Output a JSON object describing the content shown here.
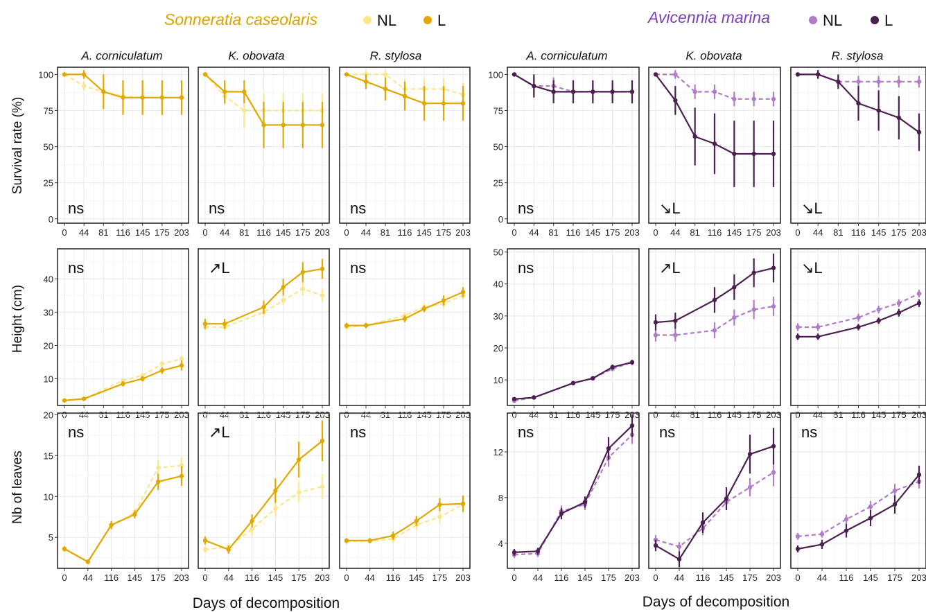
{
  "legends": [
    {
      "title": "Sonneratia caseolaris",
      "title_color": "#D9A300",
      "items": [
        {
          "label": "NL",
          "color": "#FDE58E"
        },
        {
          "label": "L",
          "color": "#E0A800"
        }
      ]
    },
    {
      "title": "Avicennia marina",
      "title_color": "#7B3FBF",
      "items": [
        {
          "label": "NL",
          "color": "#B07CC6"
        },
        {
          "label": "L",
          "color": "#4B1F4F"
        }
      ]
    }
  ],
  "x_axis_label": "Days of decomposition",
  "y_axis_labels": [
    "Survival rate (%)",
    "Height (cm)",
    "Nb of leaves"
  ],
  "species": [
    "A. corniculatum",
    "K. obovata",
    "R. stylosa"
  ],
  "chart_data": [
    {
      "type": "line",
      "group": "Sonneratia caseolaris",
      "row": "Survival rate (%)",
      "x_ticks": [
        "0",
        "44",
        "81",
        "116",
        "145",
        "175",
        "203"
      ],
      "y_ticks": [
        "0",
        "25",
        "50",
        "75",
        "100"
      ],
      "ylim": [
        -3,
        105
      ],
      "panels": [
        {
          "species": "A. corniculatum",
          "annotation": "ns",
          "series": [
            {
              "name": "NL",
              "values": [
                100,
                92,
                88,
                85,
                84,
                84,
                84
              ],
              "err": [
                0,
                3,
                5,
                6,
                6,
                6,
                6
              ]
            },
            {
              "name": "L",
              "values": [
                100,
                100,
                88,
                84,
                84,
                84,
                84
              ],
              "err": [
                0,
                3,
                12,
                12,
                12,
                12,
                12
              ]
            }
          ]
        },
        {
          "species": "K. obovata",
          "annotation": "ns",
          "series": [
            {
              "name": "NL",
              "values": [
                100,
                85,
                75,
                75,
                75,
                75,
                75
              ],
              "err": [
                0,
                6,
                12,
                12,
                12,
                12,
                12
              ]
            },
            {
              "name": "L",
              "values": [
                100,
                88,
                88,
                65,
                65,
                65,
                65
              ],
              "err": [
                0,
                8,
                8,
                16,
                16,
                16,
                16
              ]
            }
          ]
        },
        {
          "species": "R. stylosa",
          "annotation": "ns",
          "series": [
            {
              "name": "NL",
              "values": [
                100,
                100,
                100,
                90,
                90,
                90,
                86
              ],
              "err": [
                0,
                3,
                3,
                7,
                7,
                7,
                8
              ]
            },
            {
              "name": "L",
              "values": [
                100,
                95,
                90,
                85,
                80,
                80,
                80
              ],
              "err": [
                0,
                5,
                8,
                10,
                12,
                12,
                12
              ]
            }
          ]
        }
      ]
    },
    {
      "type": "line",
      "group": "Avicennia marina",
      "row": "Survival rate (%)",
      "x_ticks": [
        "0",
        "44",
        "81",
        "116",
        "145",
        "175",
        "203"
      ],
      "y_ticks": [
        "0",
        "25",
        "50",
        "75",
        "100"
      ],
      "ylim": [
        -3,
        105
      ],
      "panels": [
        {
          "species": "A. corniculatum",
          "annotation": "ns",
          "series": [
            {
              "name": "NL",
              "values": [
                100,
                92,
                92,
                88,
                88,
                88,
                88
              ],
              "err": [
                0,
                6,
                6,
                6,
                6,
                6,
                6
              ]
            },
            {
              "name": "L",
              "values": [
                100,
                92,
                88,
                88,
                88,
                88,
                88
              ],
              "err": [
                0,
                8,
                8,
                8,
                8,
                8,
                8
              ]
            }
          ]
        },
        {
          "species": "K. obovata",
          "annotation": "↘L",
          "series": [
            {
              "name": "NL",
              "values": [
                100,
                100,
                88,
                88,
                83,
                83,
                83
              ],
              "err": [
                0,
                3,
                5,
                5,
                5,
                5,
                5
              ]
            },
            {
              "name": "L",
              "values": [
                100,
                82,
                57,
                52,
                45,
                45,
                45
              ],
              "err": [
                0,
                10,
                20,
                21,
                23,
                23,
                23
              ]
            }
          ]
        },
        {
          "species": "R. stylosa",
          "annotation": "↘L",
          "series": [
            {
              "name": "NL",
              "values": [
                100,
                100,
                95,
                95,
                95,
                95,
                95
              ],
              "err": [
                0,
                3,
                4,
                4,
                4,
                4,
                4
              ]
            },
            {
              "name": "L",
              "values": [
                100,
                100,
                95,
                80,
                75,
                70,
                60
              ],
              "err": [
                0,
                3,
                5,
                12,
                14,
                15,
                13
              ]
            }
          ]
        }
      ]
    },
    {
      "type": "line",
      "group": "Sonneratia caseolaris",
      "row": "Height (cm)",
      "x_ticks": [
        "0",
        "44",
        "81",
        "116",
        "145",
        "175",
        "203"
      ],
      "y_ticks": [
        "10",
        "20",
        "30",
        "40"
      ],
      "ylim": [
        2,
        49
      ],
      "panels": [
        {
          "species": "A. corniculatum",
          "annotation": "ns",
          "series": [
            {
              "name": "NL",
              "values": [
                3.5,
                4.0,
                9.5,
                11.0,
                14.5,
                16.0
              ],
              "err": [
                0.4,
                0.4,
                0.6,
                0.6,
                0.8,
                0.8
              ]
            },
            {
              "name": "L",
              "values": [
                3.5,
                4.0,
                8.5,
                10.0,
                12.5,
                14.0
              ],
              "err": [
                0.4,
                0.4,
                0.8,
                0.8,
                1.0,
                1.5
              ]
            }
          ]
        },
        {
          "species": "K. obovata",
          "annotation": "↗L",
          "series": [
            {
              "name": "NL",
              "values": [
                25.5,
                25.5,
                30.0,
                33.5,
                37.0,
                35.0
              ],
              "err": [
                1.0,
                1.0,
                1.5,
                1.5,
                2.0,
                2.0
              ]
            },
            {
              "name": "L",
              "values": [
                26.5,
                26.5,
                31.5,
                37.5,
                42.0,
                43.0
              ],
              "err": [
                1.5,
                1.5,
                2.0,
                2.5,
                3.0,
                3.0
              ]
            }
          ]
        },
        {
          "species": "R. stylosa",
          "annotation": "ns",
          "series": [
            {
              "name": "NL",
              "values": [
                25.5,
                26.0,
                29.0,
                31.5,
                32.5,
                35.0
              ],
              "err": [
                0.8,
                0.8,
                1.0,
                1.0,
                1.2,
                1.2
              ]
            },
            {
              "name": "L",
              "values": [
                26.0,
                26.0,
                28.0,
                31.0,
                33.5,
                36.0
              ],
              "err": [
                0.8,
                0.8,
                1.0,
                1.0,
                1.5,
                1.5
              ]
            }
          ]
        }
      ]
    },
    {
      "type": "line",
      "group": "Avicennia marina",
      "row": "Height (cm)",
      "x_ticks": [
        "0",
        "44",
        "81",
        "116",
        "145",
        "175",
        "203"
      ],
      "y_ticks": [
        "10",
        "20",
        "30",
        "40",
        "50"
      ],
      "ylim": [
        2,
        51
      ],
      "panels": [
        {
          "species": "A. corniculatum",
          "annotation": "ns",
          "series": [
            {
              "name": "NL",
              "values": [
                3.5,
                4.5,
                9.0,
                10.5,
                13.5,
                15.5
              ],
              "err": [
                0.5,
                0.5,
                0.6,
                0.6,
                0.8,
                0.8
              ]
            },
            {
              "name": "L",
              "values": [
                4.0,
                4.5,
                9.0,
                10.5,
                14.0,
                15.5
              ],
              "err": [
                0.5,
                0.5,
                0.6,
                0.6,
                0.8,
                0.8
              ]
            }
          ]
        },
        {
          "species": "K. obovata",
          "annotation": "↗L",
          "series": [
            {
              "name": "NL",
              "values": [
                24.0,
                24.0,
                25.5,
                29.5,
                32.0,
                33.0
              ],
              "err": [
                2.0,
                2.0,
                2.5,
                2.5,
                3.0,
                3.0
              ]
            },
            {
              "name": "L",
              "values": [
                28.0,
                28.5,
                35.0,
                39.0,
                43.5,
                45.0
              ],
              "err": [
                2.5,
                2.5,
                4.0,
                4.0,
                4.5,
                4.5
              ]
            }
          ]
        },
        {
          "species": "R. stylosa",
          "annotation": "↘L",
          "series": [
            {
              "name": "NL",
              "values": [
                26.5,
                26.5,
                29.5,
                32.0,
                34.0,
                37.0
              ],
              "err": [
                1.2,
                1.2,
                1.2,
                1.2,
                1.2,
                1.2
              ]
            },
            {
              "name": "L",
              "values": [
                23.5,
                23.5,
                26.5,
                28.5,
                31.0,
                34.0
              ],
              "err": [
                1.0,
                1.0,
                1.0,
                1.0,
                1.2,
                1.2
              ]
            }
          ]
        }
      ]
    },
    {
      "type": "line",
      "group": "Sonneratia caseolaris",
      "row": "Nb of leaves",
      "x_ticks": [
        "0",
        "44",
        "116",
        "145",
        "175",
        "203"
      ],
      "y_ticks": [
        "5",
        "10",
        "15",
        "20"
      ],
      "ylim": [
        1.2,
        20.2
      ],
      "panels": [
        {
          "species": "A. corniculatum",
          "annotation": "ns",
          "series": [
            {
              "name": "NL",
              "values": [
                3.5,
                2.0,
                6.5,
                8.0,
                13.5,
                13.8
              ],
              "err": [
                0.3,
                0.3,
                0.5,
                0.5,
                1.0,
                1.0
              ]
            },
            {
              "name": "L",
              "values": [
                3.6,
                2.0,
                6.5,
                7.8,
                11.8,
                12.5
              ],
              "err": [
                0.3,
                0.3,
                0.5,
                0.5,
                1.0,
                1.2
              ]
            }
          ]
        },
        {
          "species": "K. obovata",
          "annotation": "↗L",
          "series": [
            {
              "name": "NL",
              "values": [
                3.5,
                3.8,
                6.0,
                8.5,
                10.5,
                11.2
              ],
              "err": [
                0.4,
                0.4,
                0.8,
                1.0,
                1.2,
                1.5
              ]
            },
            {
              "name": "L",
              "values": [
                4.6,
                3.5,
                7.0,
                10.7,
                14.5,
                16.8
              ],
              "err": [
                0.5,
                0.5,
                0.8,
                1.5,
                2.2,
                2.5
              ]
            }
          ]
        },
        {
          "species": "R. stylosa",
          "annotation": "ns",
          "series": [
            {
              "name": "NL",
              "values": [
                4.5,
                4.5,
                4.8,
                6.5,
                7.5,
                9.0
              ],
              "err": [
                0.3,
                0.3,
                0.5,
                0.6,
                0.7,
                0.8
              ]
            },
            {
              "name": "L",
              "values": [
                4.6,
                4.6,
                5.2,
                7.0,
                9.0,
                9.1
              ],
              "err": [
                0.3,
                0.3,
                0.5,
                0.6,
                0.8,
                1.0
              ]
            }
          ]
        }
      ]
    },
    {
      "type": "line",
      "group": "Avicennia marina",
      "row": "Nb of leaves",
      "x_ticks": [
        "0",
        "44",
        "116",
        "145",
        "175",
        "203"
      ],
      "y_ticks": [
        "4",
        "8",
        "12"
      ],
      "ylim": [
        1.8,
        15.4
      ],
      "panels": [
        {
          "species": "A. corniculatum",
          "annotation": "ns",
          "series": [
            {
              "name": "NL",
              "values": [
                3.0,
                3.1,
                6.8,
                7.4,
                11.5,
                13.5
              ],
              "err": [
                0.3,
                0.3,
                0.5,
                0.5,
                0.8,
                0.8
              ]
            },
            {
              "name": "L",
              "values": [
                3.2,
                3.3,
                6.6,
                7.6,
                12.3,
                14.3
              ],
              "err": [
                0.3,
                0.3,
                0.5,
                0.5,
                1.0,
                1.0
              ]
            }
          ]
        },
        {
          "species": "K. obovata",
          "annotation": "ns",
          "series": [
            {
              "name": "NL",
              "values": [
                4.3,
                3.7,
                5.3,
                7.6,
                8.9,
                10.2
              ],
              "err": [
                0.4,
                0.4,
                0.6,
                0.6,
                0.8,
                1.2
              ]
            },
            {
              "name": "L",
              "values": [
                3.8,
                2.6,
                5.8,
                7.9,
                11.8,
                12.5
              ],
              "err": [
                0.5,
                0.7,
                0.9,
                1.0,
                1.7,
                1.6
              ]
            }
          ]
        },
        {
          "species": "R. stylosa",
          "annotation": "ns",
          "series": [
            {
              "name": "NL",
              "values": [
                4.6,
                4.8,
                6.1,
                7.2,
                8.6,
                9.4
              ],
              "err": [
                0.3,
                0.3,
                0.4,
                0.5,
                0.6,
                0.6
              ]
            },
            {
              "name": "L",
              "values": [
                3.5,
                3.9,
                5.1,
                6.2,
                7.4,
                10.0
              ],
              "err": [
                0.3,
                0.4,
                0.6,
                0.7,
                0.8,
                0.8
              ]
            }
          ]
        }
      ]
    }
  ]
}
